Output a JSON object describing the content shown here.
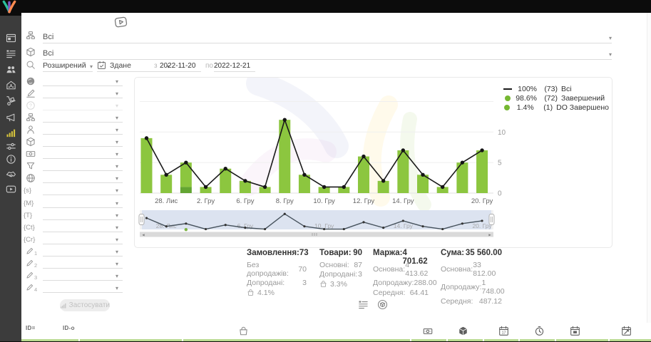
{
  "sidebar": {
    "items": [
      {
        "icon": "dashboard"
      },
      {
        "icon": "list"
      },
      {
        "icon": "people"
      },
      {
        "icon": "store"
      },
      {
        "icon": "handtruck"
      },
      {
        "icon": "megaphone"
      },
      {
        "icon": "chart-bars"
      },
      {
        "icon": "sliders"
      },
      {
        "icon": "info"
      },
      {
        "icon": "handshake"
      },
      {
        "icon": "video"
      }
    ],
    "active_index": 6
  },
  "filters": {
    "category": {
      "icon": "sitemap",
      "value": "Всі"
    },
    "product": {
      "icon": "package",
      "value": "Всі"
    },
    "search": {
      "icon": "search",
      "mode": "Розширений"
    },
    "date": {
      "icon": "calendar",
      "mode": "Здане",
      "from_label": "з",
      "from": "2022-11-20",
      "to_label": "по",
      "to": "2022-12-21"
    },
    "side_rows": [
      {
        "icon": "globe-solid"
      },
      {
        "icon": "pen-lines"
      },
      {
        "icon": "question-circle",
        "disabled": true
      },
      {
        "icon": "sitemap"
      },
      {
        "icon": "person"
      },
      {
        "icon": "package"
      },
      {
        "icon": "money"
      },
      {
        "icon": "funnel"
      },
      {
        "icon": "globe-grid"
      },
      {
        "icon": "brace",
        "text": "{s}"
      },
      {
        "icon": "brace",
        "text": "{M}"
      },
      {
        "icon": "brace",
        "text": "{T}"
      },
      {
        "icon": "brace",
        "text": "{Ct}"
      },
      {
        "icon": "brace",
        "text": "{Cr}"
      },
      {
        "icon": "pencil",
        "num": "1"
      },
      {
        "icon": "pencil",
        "num": "2"
      },
      {
        "icon": "pencil",
        "num": "3"
      },
      {
        "icon": "pencil",
        "num": "4"
      }
    ],
    "apply_button": "Застосувати"
  },
  "legend": {
    "items": [
      {
        "marker": "line",
        "color": "#1a1a1a",
        "percent": "100%",
        "count": "(73)",
        "label": "Всі"
      },
      {
        "marker": "dot",
        "color": "#76b832",
        "percent": "98.6%",
        "count": "(72)",
        "label": "Завершений"
      },
      {
        "marker": "dot",
        "color": "#76b832",
        "percent": "1.4%",
        "count": "(1)",
        "label": "DO Завершено"
      }
    ]
  },
  "chart_data": {
    "type": "bar+line",
    "x_tick_labels": [
      {
        "index": 1,
        "label": "28. Лис"
      },
      {
        "index": 3,
        "label": "2. Гру"
      },
      {
        "index": 5,
        "label": "6. Гру"
      },
      {
        "index": 7,
        "label": "8. Гру"
      },
      {
        "index": 9,
        "label": "10. Гру"
      },
      {
        "index": 11,
        "label": "12. Гру"
      },
      {
        "index": 13,
        "label": "14. Гру"
      },
      {
        "index": 17,
        "label": "20. Гру"
      }
    ],
    "series": [
      {
        "name": "Всі",
        "type": "line",
        "color": "#1a1a1a",
        "values": [
          9,
          3,
          5,
          1,
          4,
          2,
          1,
          12,
          3,
          1,
          1,
          6,
          2,
          7,
          3,
          1,
          5,
          7
        ]
      },
      {
        "name": "Завершений",
        "type": "bar",
        "color": "#8cc63f",
        "values": [
          9,
          3,
          4,
          1,
          4,
          2,
          1,
          12,
          3,
          1,
          1,
          6,
          2,
          7,
          3,
          1,
          5,
          7
        ]
      },
      {
        "name": "DO Завершено",
        "type": "bar",
        "color": "#63a532",
        "values": [
          0,
          0,
          1,
          0,
          0,
          0,
          0,
          0,
          0,
          0,
          0,
          0,
          0,
          0,
          0,
          0,
          0,
          0
        ]
      }
    ],
    "ylim": [
      0,
      12.5
    ],
    "yticks": [
      0,
      5,
      10
    ],
    "grid": true,
    "legend_position": "top-right",
    "navigator": {
      "labels": [
        {
          "index": 1,
          "label": "28. Лис"
        },
        {
          "index": 5,
          "label": "6. Гру"
        },
        {
          "index": 9,
          "label": "10. Гру"
        },
        {
          "index": 13,
          "label": "14. Гру"
        },
        {
          "index": 17,
          "label": "20. Гру"
        }
      ],
      "green_dot_index": 2
    }
  },
  "stats": {
    "columns": [
      {
        "title": "Замовлення:",
        "value": "73",
        "rows": [
          {
            "label": "Без допродажів:",
            "value": "70"
          },
          {
            "label": "Допродані:",
            "value": "3"
          }
        ],
        "basket_percent": "4.1%"
      },
      {
        "title": "Товари:",
        "value": "90",
        "rows": [
          {
            "label": "Основні:",
            "value": "87"
          },
          {
            "label": "Допродані:",
            "value": "3"
          }
        ],
        "basket_percent": "3.3%"
      },
      {
        "title": "Маржа:",
        "value": "4 701.62",
        "rows": [
          {
            "label": "Основна:",
            "value": "4 413.62"
          },
          {
            "label": "Допродажу:",
            "value": "288.00"
          },
          {
            "label": "Середня:",
            "value": "64.41"
          }
        ]
      },
      {
        "title": "Сума:",
        "value": "35 560.00",
        "rows": [
          {
            "label": "Основна:",
            "value": "33 812.00"
          },
          {
            "label": "Допродажу:",
            "value": "1 748.00"
          },
          {
            "label": "Середня:",
            "value": "487.12"
          }
        ]
      }
    ]
  },
  "view_toggles": [
    {
      "icon": "list"
    },
    {
      "icon": "package-circle"
    }
  ],
  "footer": {
    "tabs": [
      {
        "label": "ID="
      },
      {
        "label": "ID-o"
      }
    ],
    "icons": [
      "basket",
      "money",
      "cube-filled",
      "calendar-num",
      "clock",
      "calendar-box",
      "calendar-edit"
    ],
    "calendar_day": "17"
  }
}
